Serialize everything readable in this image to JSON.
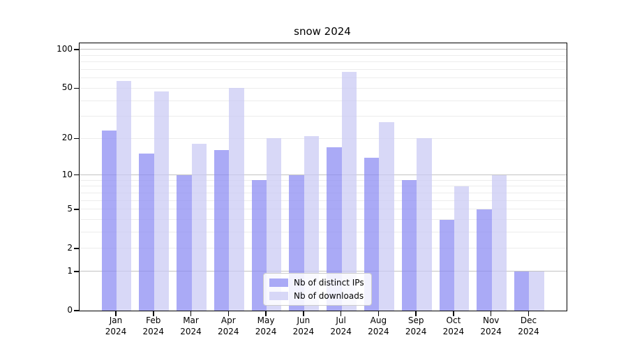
{
  "title": "snow 2024",
  "chart_data": {
    "type": "bar",
    "title": "snow 2024",
    "categories": [
      "Jan",
      "Feb",
      "Mar",
      "Apr",
      "May",
      "Jun",
      "Jul",
      "Aug",
      "Sep",
      "Oct",
      "Nov",
      "Dec"
    ],
    "year_label": "2024",
    "series": [
      {
        "name": "Nb of distinct IPs",
        "color": "rgba(137,137,243,0.72)",
        "solid_color": "#aaaaf8",
        "values": [
          23,
          15,
          10,
          16,
          9,
          10,
          17,
          14,
          9,
          4,
          5,
          1
        ]
      },
      {
        "name": "Nb of downloads",
        "color": "rgba(201,201,244,0.72)",
        "solid_color": "#d8d8f8",
        "values": [
          57,
          47,
          18,
          50,
          20,
          21,
          67,
          27,
          20,
          8,
          10,
          1
        ]
      }
    ],
    "xlabel": "",
    "ylabel": "",
    "yscale": "log1p",
    "ylim": [
      0,
      100
    ],
    "yticks": [
      0,
      1,
      2,
      5,
      10,
      20,
      50,
      100
    ],
    "ytick_major_gridlines": [
      1,
      10,
      100
    ],
    "yminor_gridlines": [
      2,
      3,
      4,
      5,
      6,
      7,
      8,
      9,
      20,
      30,
      40,
      50,
      60,
      70,
      80,
      90
    ],
    "grid": true,
    "legend_position": "lower center"
  }
}
